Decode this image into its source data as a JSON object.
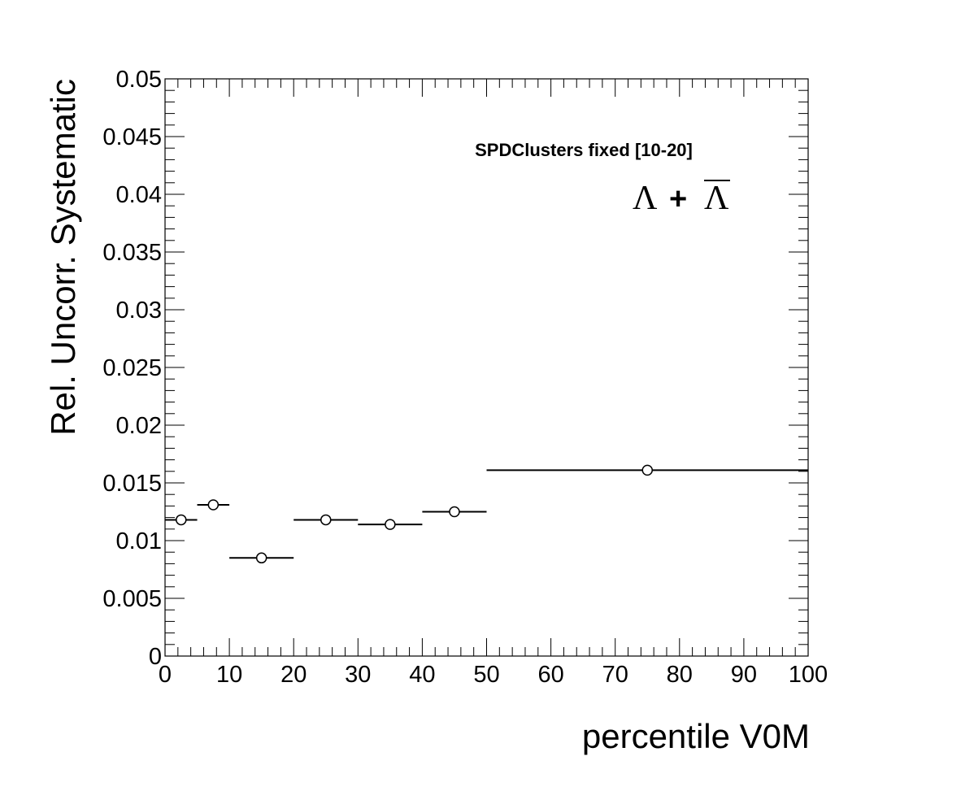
{
  "chart_data": {
    "type": "scatter",
    "xlabel": "percentile V0M",
    "ylabel": "Rel. Uncorr. Systematic",
    "xlim": [
      0,
      100
    ],
    "ylim": [
      0,
      0.05
    ],
    "x_ticks": [
      "0",
      "10",
      "20",
      "30",
      "40",
      "50",
      "60",
      "70",
      "80",
      "90",
      "100"
    ],
    "y_ticks": [
      "0",
      "0.005",
      "0.01",
      "0.015",
      "0.02",
      "0.025",
      "0.03",
      "0.035",
      "0.04",
      "0.045",
      "0.05"
    ],
    "grid": false,
    "annotation": "SPDClusters fixed [10-20]",
    "particle_label": {
      "left": "Λ",
      "operator": "+",
      "right": "Λ"
    },
    "marker": "open-circle",
    "series": [
      {
        "points": [
          {
            "x": 2.5,
            "xlow": 0,
            "xhigh": 5,
            "y": 0.0118
          },
          {
            "x": 7.5,
            "xlow": 5,
            "xhigh": 10,
            "y": 0.0131
          },
          {
            "x": 15,
            "xlow": 10,
            "xhigh": 20,
            "y": 0.0085
          },
          {
            "x": 25,
            "xlow": 20,
            "xhigh": 30,
            "y": 0.0118
          },
          {
            "x": 35,
            "xlow": 30,
            "xhigh": 40,
            "y": 0.0114
          },
          {
            "x": 45,
            "xlow": 40,
            "xhigh": 50,
            "y": 0.0125
          },
          {
            "x": 75,
            "xlow": 50,
            "xhigh": 100,
            "y": 0.0161
          }
        ]
      }
    ]
  }
}
